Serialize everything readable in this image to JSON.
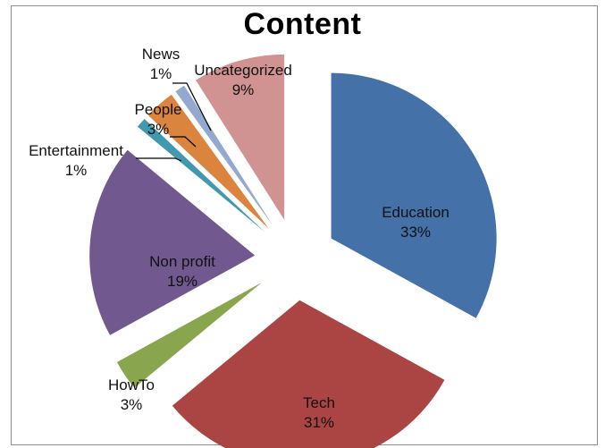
{
  "chart_data": {
    "type": "pie",
    "title": "Content",
    "slices": [
      {
        "label": "Education",
        "value": 33,
        "display": "33%",
        "color": "#4472A8"
      },
      {
        "label": "Tech",
        "value": 31,
        "display": "31%",
        "color": "#AA4543"
      },
      {
        "label": "HowTo",
        "value": 3,
        "display": "3%",
        "color": "#89A54E"
      },
      {
        "label": "Non profit",
        "value": 19,
        "display": "19%",
        "color": "#71588F"
      },
      {
        "label": "Entertainment",
        "value": 1,
        "display": "1%",
        "color": "#4198AF"
      },
      {
        "label": "People",
        "value": 3,
        "display": "3%",
        "color": "#DB843D"
      },
      {
        "label": "News",
        "value": 1,
        "display": "1%",
        "color": "#93A9CF"
      },
      {
        "label": "Uncategorized",
        "value": 9,
        "display": "9%",
        "color": "#D19392"
      }
    ],
    "legend": "none",
    "exploded": true
  }
}
